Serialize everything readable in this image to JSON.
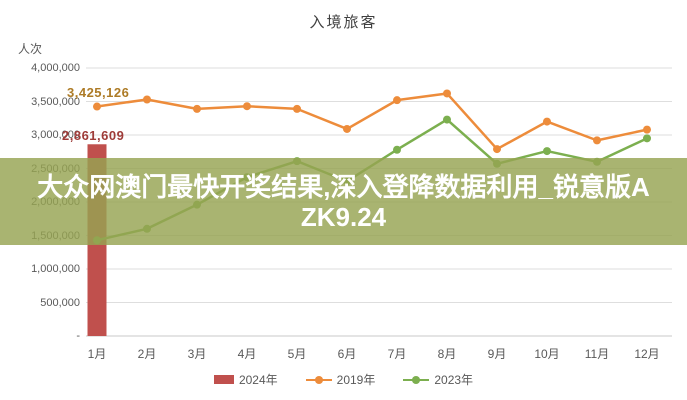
{
  "title": "入境旅客",
  "y_axis": {
    "unit_label": "人次",
    "ticks": [
      {
        "label": "4,000,000",
        "value": 4000000
      },
      {
        "label": "3,500,000",
        "value": 3500000
      },
      {
        "label": "3,000,000",
        "value": 3000000
      },
      {
        "label": "2,500,000",
        "value": 2500000
      },
      {
        "label": "2,000,000",
        "value": 2000000
      },
      {
        "label": "1,500,000",
        "value": 1500000
      },
      {
        "label": "1,000,000",
        "value": 1000000
      },
      {
        "label": "500,000",
        "value": 500000
      },
      {
        "label": "-",
        "value": 0
      }
    ]
  },
  "x_axis": {
    "labels": [
      "1月",
      "2月",
      "3月",
      "4月",
      "5月",
      "6月",
      "7月",
      "8月",
      "9月",
      "10月",
      "11月",
      "12月"
    ]
  },
  "annotations": [
    {
      "id": "anno-2019",
      "text": "3,425,126",
      "color": "#ad7b26"
    },
    {
      "id": "anno-2024",
      "text": "2,861,609",
      "color": "#9e3b38"
    }
  ],
  "banner": {
    "full_text": "大众网澳门最快开奖结果,深入登降数据利用_锐意版AZK9.24",
    "line1": "大众网澳门最快开奖结果,深入登降数据利用_锐意版A",
    "line2": "ZK9.24",
    "text_color": "#ffffff",
    "bg_color": "rgba(150,163,82,0.82)"
  },
  "legend": {
    "items": [
      {
        "label": "2024年",
        "type": "bar",
        "color": "#c0504d"
      },
      {
        "label": "2019年",
        "type": "line",
        "color": "#ed8c3b"
      },
      {
        "label": "2023年",
        "type": "line",
        "color": "#7caf4f"
      }
    ]
  },
  "chart_data": {
    "type": "bar",
    "subtype": "combo-bar-line",
    "title": "入境旅客",
    "ylabel": "人次",
    "ylim": [
      0,
      4000000
    ],
    "grid": true,
    "legend_position": "bottom",
    "categories": [
      "1月",
      "2月",
      "3月",
      "4月",
      "5月",
      "6月",
      "7月",
      "8月",
      "9月",
      "10月",
      "11月",
      "12月"
    ],
    "series": [
      {
        "name": "2024年",
        "type": "bar",
        "color": "#c0504d",
        "values": [
          2861609,
          null,
          null,
          null,
          null,
          null,
          null,
          null,
          null,
          null,
          null,
          null
        ]
      },
      {
        "name": "2019年",
        "type": "line",
        "color": "#ed8c3b",
        "values": [
          3425126,
          3530000,
          3390000,
          3430000,
          3390000,
          3090000,
          3520000,
          3620000,
          2790000,
          3200000,
          2920000,
          3080000
        ]
      },
      {
        "name": "2023年",
        "type": "line",
        "color": "#7caf4f",
        "values": [
          1430000,
          1600000,
          1960000,
          2370000,
          2610000,
          2310000,
          2780000,
          3230000,
          2570000,
          2760000,
          2600000,
          2950000
        ]
      }
    ],
    "point_labels": [
      {
        "series": "2019年",
        "category": "1月",
        "text": "3,425,126"
      },
      {
        "series": "2024年",
        "category": "1月",
        "text": "2,861,609"
      }
    ]
  },
  "layout_colors": {
    "gridline": "#dedede",
    "axis_line": "#c9c9c9"
  }
}
